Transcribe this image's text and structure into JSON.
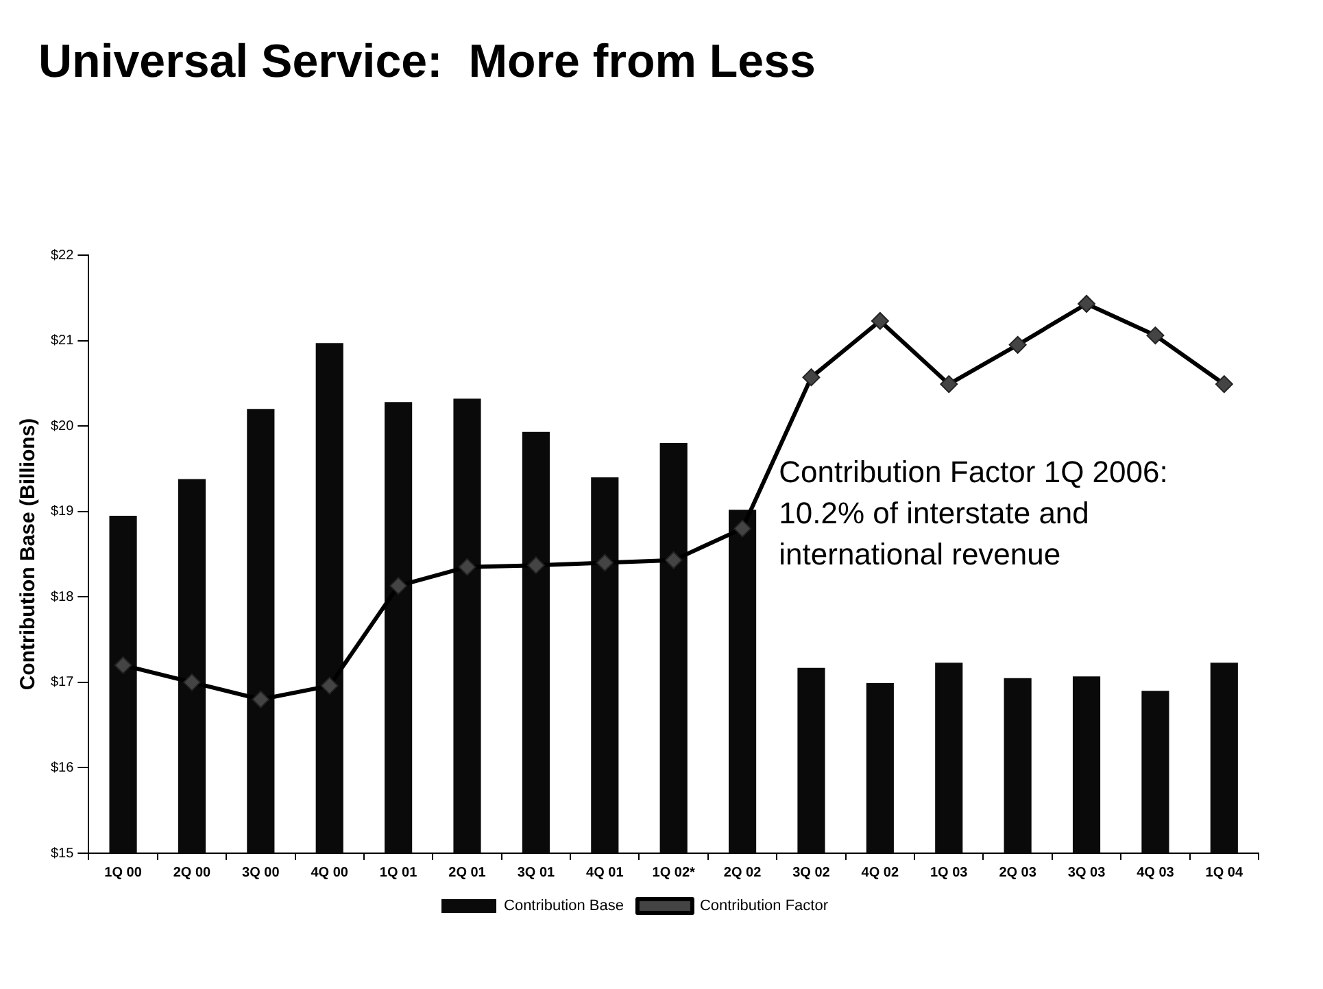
{
  "chart_data": {
    "type": "bar",
    "title": "Universal Service:  More from Less",
    "ylabel": "Contribution Base (Billions)",
    "categories": [
      "1Q 00",
      "2Q 00",
      "3Q 00",
      "4Q 00",
      "1Q 01",
      "2Q 01",
      "3Q 01",
      "4Q 01",
      "1Q 02*",
      "2Q 02",
      "3Q 02",
      "4Q 02",
      "1Q 03",
      "2Q 03",
      "3Q 03",
      "4Q 03",
      "1Q 04"
    ],
    "series": [
      {
        "name": "Contribution Base",
        "color": "#0a0a0a",
        "values": [
          18.95,
          19.38,
          20.2,
          20.97,
          20.28,
          20.32,
          19.93,
          19.4,
          19.8,
          19.02,
          17.17,
          16.99,
          17.23,
          17.05,
          17.07,
          16.9,
          17.23
        ]
      },
      {
        "name": "Contribution Factor",
        "type": "line",
        "color": "#000000",
        "marker": "diamond",
        "values": [
          17.2,
          17.0,
          16.8,
          16.96,
          18.13,
          18.35,
          18.37,
          18.4,
          18.43,
          18.8,
          20.57,
          21.23,
          20.49,
          20.95,
          21.43,
          21.06,
          20.49
        ]
      }
    ],
    "ylim": [
      15,
      22
    ],
    "yticks": [
      {
        "value": 15,
        "label": "$15"
      },
      {
        "value": 16,
        "label": "$16"
      },
      {
        "value": 17,
        "label": "$17"
      },
      {
        "value": 18,
        "label": "$18"
      },
      {
        "value": 19,
        "label": "$19"
      },
      {
        "value": 20,
        "label": "$20"
      },
      {
        "value": 21,
        "label": "$21"
      },
      {
        "value": 22,
        "label": "$22"
      }
    ],
    "grid": false,
    "legend": "bottom",
    "annotations": [
      "Contribution Factor 1Q 2006: 10.2% of interstate and international revenue"
    ]
  }
}
